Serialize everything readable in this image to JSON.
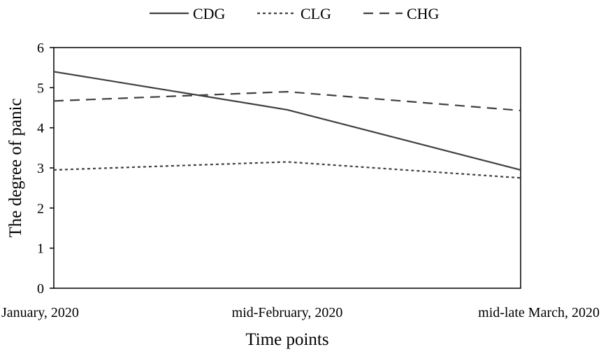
{
  "chart_data": {
    "type": "line",
    "title": "",
    "xlabel": "Time points",
    "ylabel": "The degree of panic",
    "categories": [
      "January, 2020",
      "mid-February, 2020",
      "mid-late March, 2020"
    ],
    "ylim": [
      0,
      6
    ],
    "yticks": [
      0,
      1,
      2,
      3,
      4,
      5,
      6
    ],
    "grid": false,
    "legend": "top-center",
    "series": [
      {
        "name": "CDG",
        "values": [
          5.4,
          4.45,
          2.95
        ],
        "line_style": "solid"
      },
      {
        "name": "CLG",
        "values": [
          2.95,
          3.15,
          2.75
        ],
        "line_style": "dotted"
      },
      {
        "name": "CHG",
        "values": [
          4.67,
          4.9,
          4.43
        ],
        "line_style": "dashed"
      }
    ],
    "colors": {
      "line": "#404040",
      "axis": "#000000"
    }
  }
}
